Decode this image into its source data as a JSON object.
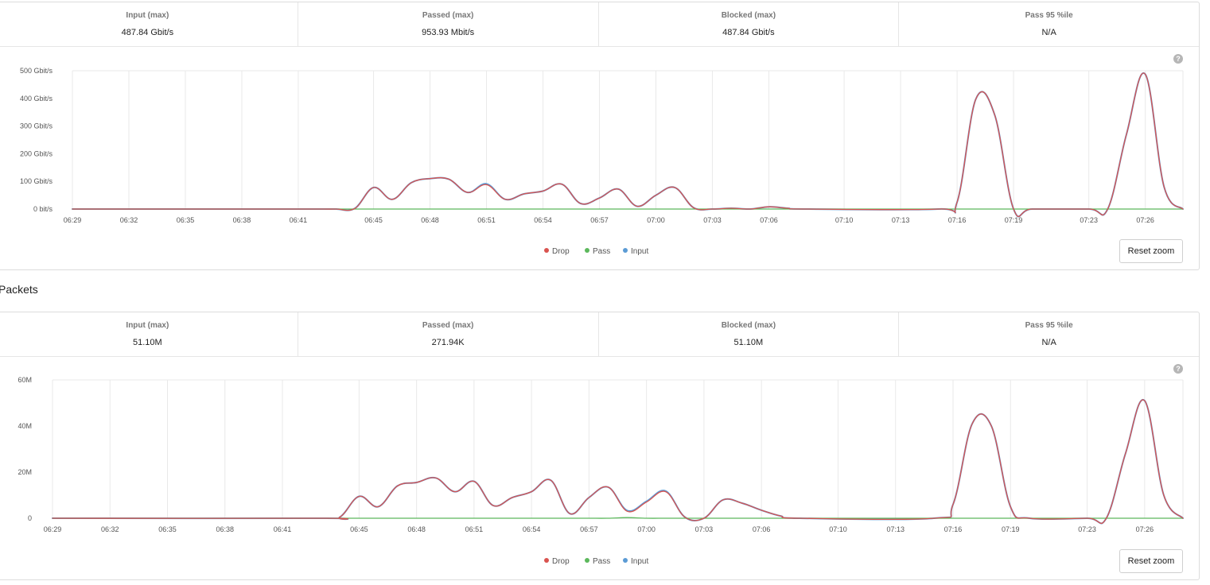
{
  "bits_panel": {
    "stats": [
      {
        "label": "Input (max)",
        "value": "487.84 Gbit/s"
      },
      {
        "label": "Passed (max)",
        "value": "953.93 Mbit/s"
      },
      {
        "label": "Blocked (max)",
        "value": "487.84 Gbit/s"
      },
      {
        "label": "Pass 95 %ile",
        "value": "N/A"
      }
    ],
    "help": "?",
    "reset_label": "Reset zoom"
  },
  "packets_section_title": "Packets",
  "packets_panel": {
    "stats": [
      {
        "label": "Input (max)",
        "value": "51.10M"
      },
      {
        "label": "Passed (max)",
        "value": "271.94K"
      },
      {
        "label": "Blocked (max)",
        "value": "51.10M"
      },
      {
        "label": "Pass 95 %ile",
        "value": "N/A"
      }
    ],
    "help": "?",
    "reset_label": "Reset zoom"
  },
  "colors": {
    "drop": "#d9534f",
    "pass": "#5cb85c",
    "input": "#5b9bd5"
  },
  "chart_data": [
    {
      "type": "line",
      "title": "",
      "xlabel": "",
      "ylabel": "",
      "ylim": [
        0,
        500
      ],
      "ytick_values": [
        0,
        100,
        200,
        300,
        400,
        500
      ],
      "ytick_labels": [
        "0 bit/s",
        "100 Gbit/s",
        "200 Gbit/s",
        "300 Gbit/s",
        "400 Gbit/s",
        "500 Gbit/s"
      ],
      "xlim": [
        "06:29",
        "07:28"
      ],
      "xtick_labels": [
        "06:29",
        "06:32",
        "06:35",
        "06:38",
        "06:41",
        "06:45",
        "06:48",
        "06:51",
        "06:54",
        "06:57",
        "07:00",
        "07:03",
        "07:06",
        "07:10",
        "07:13",
        "07:16",
        "07:19",
        "07:23",
        "07:26"
      ],
      "grid": true,
      "legend": "bottom-center",
      "legend_labels": [
        "Drop",
        "Pass",
        "Input"
      ],
      "x": [
        "06:29",
        "06:41",
        "06:42",
        "06:43",
        "06:44",
        "06:45",
        "06:46",
        "06:47",
        "06:48",
        "06:49",
        "06:50",
        "06:51",
        "06:52",
        "06:53",
        "06:54",
        "06:55",
        "06:56",
        "06:57",
        "06:58",
        "06:59",
        "07:00",
        "07:01",
        "07:02",
        "07:03",
        "07:04",
        "07:05",
        "07:06",
        "07:07",
        "07:08",
        "07:15",
        "07:16",
        "07:17",
        "07:18",
        "07:19",
        "07:20",
        "07:23",
        "07:24",
        "07:25",
        "07:26",
        "07:27",
        "07:28"
      ],
      "series": [
        {
          "name": "Drop",
          "values": [
            0,
            0,
            0,
            0,
            2,
            78,
            35,
            95,
            110,
            108,
            60,
            88,
            35,
            55,
            65,
            90,
            20,
            40,
            72,
            10,
            50,
            78,
            5,
            0,
            3,
            0,
            8,
            3,
            0,
            0,
            25,
            398,
            340,
            0,
            0,
            0,
            0,
            270,
            487,
            80,
            0
          ]
        },
        {
          "name": "Pass",
          "values": [
            0,
            0,
            0,
            0,
            0,
            0,
            0,
            0,
            0,
            0,
            0,
            0,
            0,
            0,
            0,
            0,
            0,
            0,
            0,
            0,
            0,
            0,
            0,
            0,
            0,
            0,
            0,
            0,
            0,
            0,
            0,
            0,
            0,
            0,
            0,
            0,
            0,
            0,
            0,
            0,
            0
          ]
        },
        {
          "name": "Input",
          "values": [
            0,
            0,
            0,
            0,
            2,
            78,
            35,
            95,
            110,
            108,
            60,
            91,
            35,
            55,
            65,
            90,
            20,
            40,
            72,
            10,
            50,
            78,
            5,
            0,
            3,
            0,
            8,
            3,
            0,
            0,
            25,
            398,
            340,
            0,
            0,
            0,
            0,
            270,
            487,
            80,
            0
          ]
        }
      ]
    },
    {
      "type": "line",
      "title": "",
      "xlabel": "",
      "ylabel": "",
      "ylim": [
        0,
        60
      ],
      "ytick_values": [
        0,
        20,
        40,
        60
      ],
      "ytick_labels": [
        "0",
        "20M",
        "40M",
        "60M"
      ],
      "xlim": [
        "06:29",
        "07:28"
      ],
      "xtick_labels": [
        "06:29",
        "06:32",
        "06:35",
        "06:38",
        "06:41",
        "06:45",
        "06:48",
        "06:51",
        "06:54",
        "06:57",
        "07:00",
        "07:03",
        "07:06",
        "07:10",
        "07:13",
        "07:16",
        "07:19",
        "07:23",
        "07:26"
      ],
      "grid": true,
      "legend": "bottom-center",
      "legend_labels": [
        "Drop",
        "Pass",
        "Input"
      ],
      "x": [
        "06:29",
        "06:43",
        "06:44",
        "06:45",
        "06:46",
        "06:47",
        "06:48",
        "06:49",
        "06:50",
        "06:51",
        "06:52",
        "06:53",
        "06:54",
        "06:55",
        "06:56",
        "06:57",
        "06:58",
        "06:59",
        "07:00",
        "07:01",
        "07:02",
        "07:03",
        "07:04",
        "07:05",
        "07:06",
        "07:07",
        "07:08",
        "07:15",
        "07:16",
        "07:17",
        "07:18",
        "07:19",
        "07:20",
        "07:23",
        "07:24",
        "07:25",
        "07:26",
        "07:27",
        "07:28"
      ],
      "series": [
        {
          "name": "Drop",
          "values": [
            0,
            0,
            0.5,
            9.5,
            5,
            14,
            15.5,
            17.5,
            11.5,
            16,
            5.5,
            9,
            11.5,
            16.5,
            2,
            9,
            13.5,
            3,
            7,
            11.5,
            0.5,
            0,
            8,
            6.5,
            3.5,
            1,
            0,
            0,
            6,
            41,
            40,
            5,
            0,
            0,
            0,
            28,
            51,
            10,
            0
          ]
        },
        {
          "name": "Pass",
          "values": [
            0,
            0,
            0,
            0,
            0,
            0,
            0,
            0,
            0,
            0,
            0,
            0,
            0,
            0,
            0,
            0,
            0,
            0.27,
            0,
            0,
            0,
            0,
            0,
            0,
            0,
            0,
            0,
            0,
            0,
            0,
            0,
            0,
            0,
            0,
            0,
            0,
            0,
            0,
            0
          ]
        },
        {
          "name": "Input",
          "values": [
            0,
            0,
            0.5,
            9.5,
            5,
            14,
            15.5,
            17.5,
            11.5,
            16,
            5.5,
            9,
            11.5,
            16.5,
            2,
            9,
            13.5,
            3.3,
            7.3,
            11.8,
            0.5,
            0,
            8,
            6.5,
            3.5,
            1,
            0,
            0,
            6,
            41,
            40,
            5,
            0,
            0,
            0,
            28,
            51,
            10,
            0
          ]
        }
      ]
    }
  ]
}
